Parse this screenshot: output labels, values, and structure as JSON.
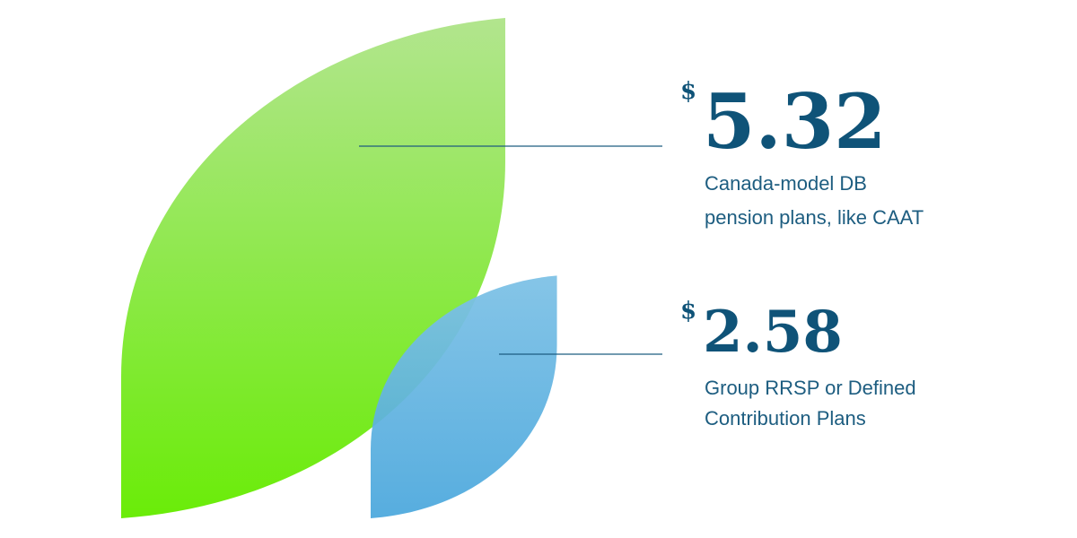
{
  "items": [
    {
      "currency": "$",
      "amount": 5.32,
      "lines": [
        "Canada-model DB",
        "pension plans, like CAAT"
      ]
    },
    {
      "currency": "$",
      "amount": 2.58,
      "lines": [
        "Group RRSP or Defined",
        "Contribution Plans"
      ]
    }
  ]
}
